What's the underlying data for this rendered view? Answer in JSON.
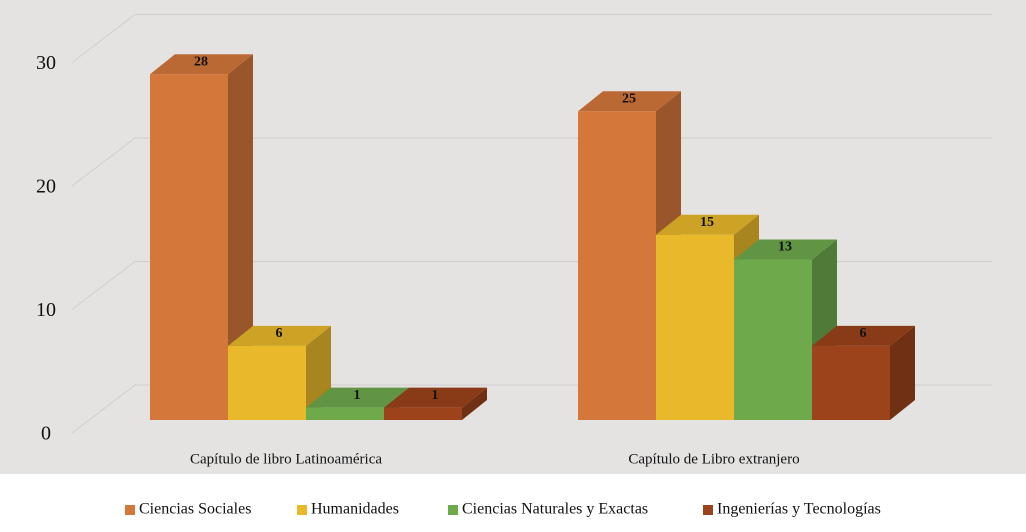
{
  "chart_data": {
    "type": "bar3d",
    "categories": [
      "Capítulo de libro Latinoamérica",
      "Capítulo de Libro extranjero"
    ],
    "series": [
      {
        "name": "Ciencias Sociales",
        "color": "#d4773b",
        "values": [
          28,
          25
        ]
      },
      {
        "name": "Humanidades",
        "color": "#e9b92b",
        "values": [
          6,
          15
        ]
      },
      {
        "name": "Ciencias Naturales y Exactas",
        "color": "#6ea94c",
        "values": [
          1,
          13
        ]
      },
      {
        "name": "Ingenierías y Tecnologías",
        "color": "#9c431b",
        "values": [
          1,
          6
        ]
      }
    ],
    "ylim": [
      0,
      30
    ],
    "yticks": [
      0,
      10,
      20,
      30
    ],
    "grid": true
  }
}
